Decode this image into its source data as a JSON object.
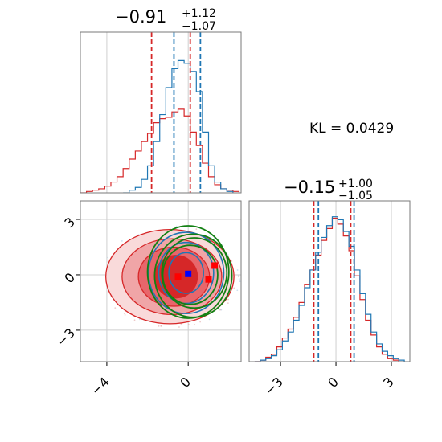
{
  "chart_data": [
    {
      "type": "step-histogram",
      "panel": "marginal-x",
      "title": {
        "median": "−0.91",
        "plus": "+1.12",
        "minus": "−1.07"
      },
      "xlim": [
        -5.3,
        2.6
      ],
      "grid": true,
      "series": [
        {
          "name": "",
          "color": "#d62728",
          "x": [
            -5.3,
            -5.0,
            -4.7,
            -4.4,
            -4.1,
            -3.8,
            -3.5,
            -3.2,
            -2.9,
            -2.6,
            -2.3,
            -2.0,
            -1.7,
            -1.4,
            -1.1,
            -0.8,
            -0.5,
            -0.2,
            0.1,
            0.4,
            0.7,
            1.0,
            1.3,
            1.6,
            1.9,
            2.2,
            2.5
          ],
          "values": [
            0,
            0.01,
            0.02,
            0.03,
            0.05,
            0.08,
            0.12,
            0.18,
            0.25,
            0.31,
            0.38,
            0.44,
            0.52,
            0.55,
            0.56,
            0.6,
            0.62,
            0.57,
            0.45,
            0.35,
            0.22,
            0.12,
            0.06,
            0.03,
            0.02,
            0.01,
            0
          ]
        },
        {
          "name": "",
          "color": "#1f77b4",
          "x": [
            -3.2,
            -2.9,
            -2.6,
            -2.3,
            -2.0,
            -1.7,
            -1.4,
            -1.1,
            -0.8,
            -0.5,
            -0.2,
            0.1,
            0.4,
            0.7,
            1.0,
            1.3,
            1.6,
            1.9,
            2.2
          ],
          "values": [
            0,
            0.02,
            0.04,
            0.1,
            0.2,
            0.38,
            0.58,
            0.78,
            0.92,
            0.98,
            0.96,
            0.9,
            0.75,
            0.45,
            0.2,
            0.08,
            0.03,
            0.01,
            0
          ]
        }
      ],
      "quantile_lines": [
        {
          "color": "#d62728",
          "x": [
            -1.8,
            0.1
          ]
        },
        {
          "color": "#1f77b4",
          "x": [
            -0.7,
            0.6
          ]
        }
      ]
    },
    {
      "type": "step-histogram",
      "panel": "marginal-y",
      "title": {
        "median": "−0.15",
        "plus": "+1.00",
        "minus": "−1.05"
      },
      "xlim": [
        -4.7,
        4.0
      ],
      "x_ticks": [
        "−3",
        "0",
        "3"
      ],
      "grid": true,
      "series": [
        {
          "name": "",
          "color": "#d62728",
          "x": [
            -4.4,
            -4.1,
            -3.8,
            -3.5,
            -3.2,
            -2.9,
            -2.6,
            -2.3,
            -2.0,
            -1.7,
            -1.4,
            -1.1,
            -0.8,
            -0.5,
            -0.2,
            0.1,
            0.4,
            0.7,
            1.0,
            1.3,
            1.6,
            1.9,
            2.2,
            2.5,
            2.8,
            3.1,
            3.4
          ],
          "values": [
            0,
            0.01,
            0.03,
            0.05,
            0.1,
            0.16,
            0.22,
            0.3,
            0.4,
            0.52,
            0.62,
            0.72,
            0.82,
            0.9,
            0.97,
            0.93,
            0.85,
            0.75,
            0.58,
            0.42,
            0.28,
            0.18,
            0.1,
            0.05,
            0.02,
            0.01,
            0
          ]
        },
        {
          "name": "",
          "color": "#1f77b4",
          "x": [
            -4.4,
            -4.1,
            -3.8,
            -3.5,
            -3.2,
            -2.9,
            -2.6,
            -2.3,
            -2.0,
            -1.7,
            -1.4,
            -1.1,
            -0.8,
            -0.5,
            -0.2,
            0.1,
            0.4,
            0.7,
            1.0,
            1.3,
            1.6,
            1.9,
            2.2,
            2.5,
            2.8,
            3.1,
            3.4,
            3.7
          ],
          "values": [
            0,
            0.01,
            0.02,
            0.04,
            0.08,
            0.14,
            0.2,
            0.28,
            0.38,
            0.5,
            0.62,
            0.74,
            0.84,
            0.92,
            0.98,
            0.96,
            0.88,
            0.78,
            0.62,
            0.46,
            0.32,
            0.2,
            0.12,
            0.07,
            0.04,
            0.02,
            0.01,
            0
          ]
        }
      ],
      "quantile_lines": [
        {
          "color": "#d62728",
          "x": [
            -1.2,
            0.8
          ]
        },
        {
          "color": "#1f77b4",
          "x": [
            -0.95,
            0.98
          ]
        }
      ]
    },
    {
      "type": "contour",
      "panel": "joint",
      "xlim": [
        -5.3,
        2.6
      ],
      "ylim": [
        -4.7,
        4.0
      ],
      "x_ticks": [
        "−4",
        "0"
      ],
      "y_ticks": [
        "3",
        "0",
        "−3"
      ],
      "grid": true,
      "red_filled_levels": [
        {
          "cx": -0.9,
          "cy": -0.1,
          "rx": 3.15,
          "ry": 2.55,
          "fill": "#f9dada"
        },
        {
          "cx": -0.8,
          "cy": -0.1,
          "rx": 2.45,
          "ry": 2.05,
          "fill": "#f0a5a7"
        },
        {
          "cx": -0.7,
          "cy": -0.1,
          "rx": 1.75,
          "ry": 1.6,
          "fill": "#e8666b"
        },
        {
          "cx": -0.6,
          "cy": -0.1,
          "rx": 1.05,
          "ry": 1.15,
          "fill": "#d62728"
        }
      ],
      "blue_contour_levels": [
        {
          "cx": -0.1,
          "cy": 0.1,
          "rx": 1.85,
          "ry": 2.2
        },
        {
          "cx": -0.1,
          "cy": 0.1,
          "rx": 1.35,
          "ry": 1.65
        },
        {
          "cx": -0.1,
          "cy": 0.1,
          "rx": 0.85,
          "ry": 1.1
        }
      ],
      "green_ellipses": [
        {
          "cx": 0.0,
          "cy": 0.15,
          "rx": 2.0,
          "ry": 2.5
        },
        {
          "cx": 0.25,
          "cy": -0.05,
          "rx": 1.9,
          "ry": 2.25
        },
        {
          "cx": 0.1,
          "cy": 0.0,
          "rx": 1.35,
          "ry": 1.6
        },
        {
          "cx": 0.3,
          "cy": 0.1,
          "rx": 1.6,
          "ry": 1.9
        }
      ],
      "red_markers": [
        {
          "x": 1.3,
          "y": 0.5
        },
        {
          "x": 1.0,
          "y": -0.25
        },
        {
          "x": -0.5,
          "y": -0.1
        }
      ],
      "blue_markers": [
        {
          "x": 0.0,
          "y": 0.05
        }
      ]
    }
  ],
  "annotation": {
    "kl_text": "KL = 0.0429"
  }
}
